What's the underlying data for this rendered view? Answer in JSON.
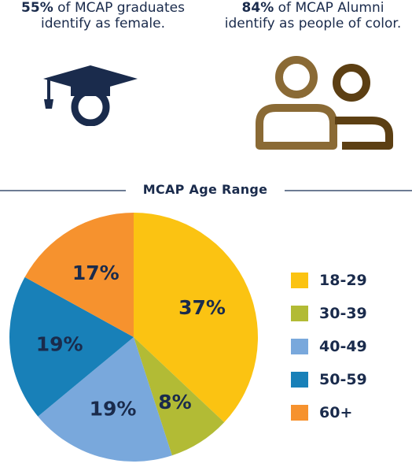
{
  "stats": {
    "left": {
      "value": "55%",
      "text": " of MCAP graduates",
      "line2": "identify as female."
    },
    "right": {
      "value": "84%",
      "text": " of MCAP Alumni",
      "line2": "identify as people of color."
    }
  },
  "icons": {
    "left": "graduation-cap-icon",
    "right": "people-icon"
  },
  "colors": {
    "navy": "#1a2b4c",
    "people_left": "#8a6a35",
    "people_right": "#5c3f13"
  },
  "chart_data": {
    "type": "pie",
    "title": "MCAP Age Range",
    "categories": [
      "18-29",
      "30-39",
      "40-49",
      "50-59",
      "60+"
    ],
    "values": [
      37,
      8,
      19,
      19,
      17
    ],
    "slice_labels": [
      "37%",
      "8%",
      "19%",
      "19%",
      "17%"
    ],
    "colors": [
      "#fbc312",
      "#b2bb35",
      "#79a8dc",
      "#1880b8",
      "#f6922e"
    ],
    "legend_position": "right"
  }
}
